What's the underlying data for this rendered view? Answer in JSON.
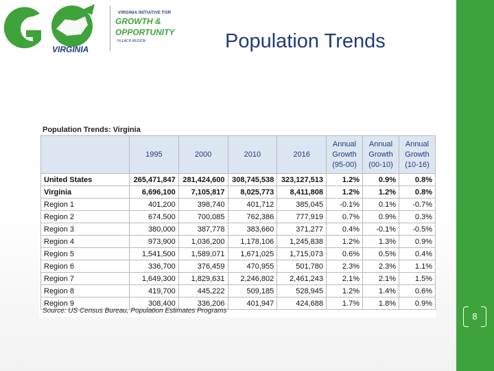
{
  "slide": {
    "title": "Population Trends",
    "page_number": "8",
    "colors": {
      "accent_green": "#3ea33b",
      "title_blue": "#1f3b7a",
      "header_fill": "#dce6f2"
    }
  },
  "logo": {
    "mark": "GO VIRGINIA",
    "line1": "Virginia Initiative for",
    "line2": "Growth &",
    "line3": "Opportunity",
    "line4": "in each region"
  },
  "table": {
    "caption": "Population Trends: Virginia",
    "source": "Source: US Census Bureau, Population Estimates Programs",
    "headers": [
      "",
      "1995",
      "2000",
      "2010",
      "2016",
      "Annual Growth (95-00)",
      "Annual Growth (00-10)",
      "Annual Growth (10-16)"
    ],
    "rows": [
      [
        "United States",
        "265,471,847",
        "281,424,600",
        "308,745,538",
        "323,127,513",
        "1.2%",
        "0.9%",
        "0.8%"
      ],
      [
        "Virginia",
        "6,696,100",
        "7,105,817",
        "8,025,773",
        "8,411,808",
        "1.2%",
        "1.2%",
        "0.8%"
      ],
      [
        "Region 1",
        "401,200",
        "398,740",
        "401,712",
        "385,045",
        "-0.1%",
        "0.1%",
        "-0.7%"
      ],
      [
        "Region 2",
        "674,500",
        "700,085",
        "762,386",
        "777,919",
        "0.7%",
        "0.9%",
        "0.3%"
      ],
      [
        "Region 3",
        "380,000",
        "387,778",
        "383,660",
        "371,277",
        "0.4%",
        "-0.1%",
        "-0.5%"
      ],
      [
        "Region 4",
        "973,900",
        "1,036,200",
        "1,178,106",
        "1,245,838",
        "1.2%",
        "1.3%",
        "0.9%"
      ],
      [
        "Region 5",
        "1,541,500",
        "1,589,071",
        "1,671,025",
        "1,715,073",
        "0.6%",
        "0.5%",
        "0.4%"
      ],
      [
        "Region 6",
        "336,700",
        "376,459",
        "470,955",
        "501,780",
        "2.3%",
        "2.3%",
        "1.1%"
      ],
      [
        "Region 7",
        "1,649,300",
        "1,829,631",
        "2,246,802",
        "2,461,243",
        "2.1%",
        "2.1%",
        "1.5%"
      ],
      [
        "Region 8",
        "419,700",
        "445,222",
        "509,185",
        "528,945",
        "1.2%",
        "1.4%",
        "0.6%"
      ],
      [
        "Region 9",
        "308,400",
        "336,206",
        "401,947",
        "424,688",
        "1.7%",
        "1.8%",
        "0.9%"
      ]
    ]
  }
}
